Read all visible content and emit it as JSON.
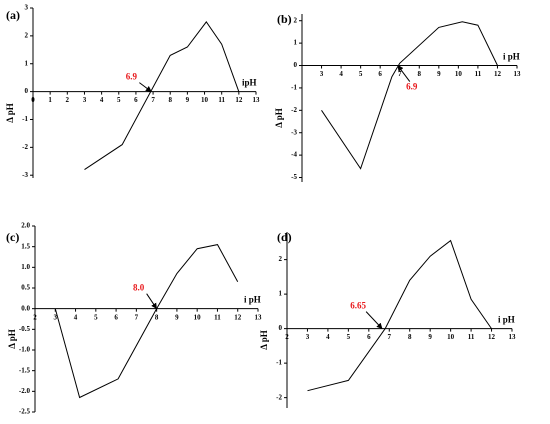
{
  "chart_data": [
    {
      "type": "line",
      "panel_label": "(a)",
      "xlabel": "ipH",
      "ylabel": "Δ pH",
      "color": "#000000",
      "x": [
        3,
        5.2,
        8,
        9,
        10.1,
        11,
        12
      ],
      "values": [
        -2.8,
        -1.9,
        1.3,
        1.6,
        2.5,
        1.7,
        0
      ],
      "xlim": [
        0,
        13
      ],
      "ylim": [
        -3.1,
        3
      ],
      "xticks": [
        0,
        1,
        2,
        3,
        4,
        5,
        6,
        7,
        8,
        9,
        10,
        11,
        12,
        13
      ],
      "yticks": [
        -3,
        -2,
        -1,
        0,
        1,
        2,
        3
      ],
      "annotation": {
        "text": "6.9",
        "x": 6.9,
        "y": 0
      }
    },
    {
      "type": "line",
      "panel_label": "(b)",
      "xlabel": "i pH",
      "ylabel": "Δ pH",
      "color": "#000000",
      "x": [
        3,
        5,
        6.6,
        7,
        9,
        10.2,
        11,
        12
      ],
      "values": [
        -2,
        -4.6,
        -0.5,
        0.1,
        1.7,
        1.95,
        1.8,
        0
      ],
      "xlim": [
        2,
        13
      ],
      "ylim": [
        -5.2,
        2.3
      ],
      "xticks": [
        3,
        4,
        5,
        6,
        7,
        8,
        9,
        10,
        11,
        12,
        13
      ],
      "yticks": [
        -5,
        -4,
        -3,
        -2,
        -1,
        0,
        1,
        2
      ],
      "annotation": {
        "text": "6.9",
        "x": 6.9,
        "y": 0
      }
    },
    {
      "type": "line",
      "panel_label": "(c)",
      "xlabel": "i pH",
      "ylabel": "Δ pH",
      "color": "#000000",
      "x": [
        3,
        4.2,
        6.1,
        8,
        9,
        10,
        11,
        12
      ],
      "values": [
        0,
        -2.15,
        -1.7,
        0,
        0.85,
        1.45,
        1.55,
        0.65
      ],
      "xlim": [
        2,
        13
      ],
      "ylim": [
        -2.5,
        2.0
      ],
      "xticks": [
        2,
        3,
        4,
        5,
        6,
        7,
        8,
        9,
        10,
        11,
        12,
        13
      ],
      "yticks": [
        -2.5,
        {
          "value": -2,
          "label": "-2.0"
        },
        -1.5,
        {
          "value": -1,
          "label": "-1.0"
        },
        -0.5,
        {
          "value": 0,
          "label": "0.0"
        },
        0.5,
        {
          "value": 1,
          "label": "1.0"
        },
        1.5,
        {
          "value": 2,
          "label": "2.0"
        }
      ],
      "annotation": {
        "text": "8.0",
        "x": 8,
        "y": 0
      }
    },
    {
      "type": "line",
      "panel_label": "(d)",
      "xlabel": "i pH",
      "ylabel": "Δ pH",
      "color": "#000000",
      "x": [
        3,
        5,
        6.8,
        8,
        9,
        10,
        11,
        12
      ],
      "values": [
        -1.8,
        -1.5,
        0,
        1.4,
        2.1,
        2.55,
        0.85,
        0
      ],
      "xlim": [
        2,
        13
      ],
      "ylim": [
        -2.3,
        2.8
      ],
      "xticks": [
        2,
        3,
        4,
        5,
        6,
        7,
        8,
        9,
        10,
        11,
        12,
        13
      ],
      "yticks": [
        -2,
        -1,
        0,
        1,
        2
      ],
      "annotation": {
        "text": "6.65",
        "x": 6.65,
        "y": 0
      }
    }
  ]
}
